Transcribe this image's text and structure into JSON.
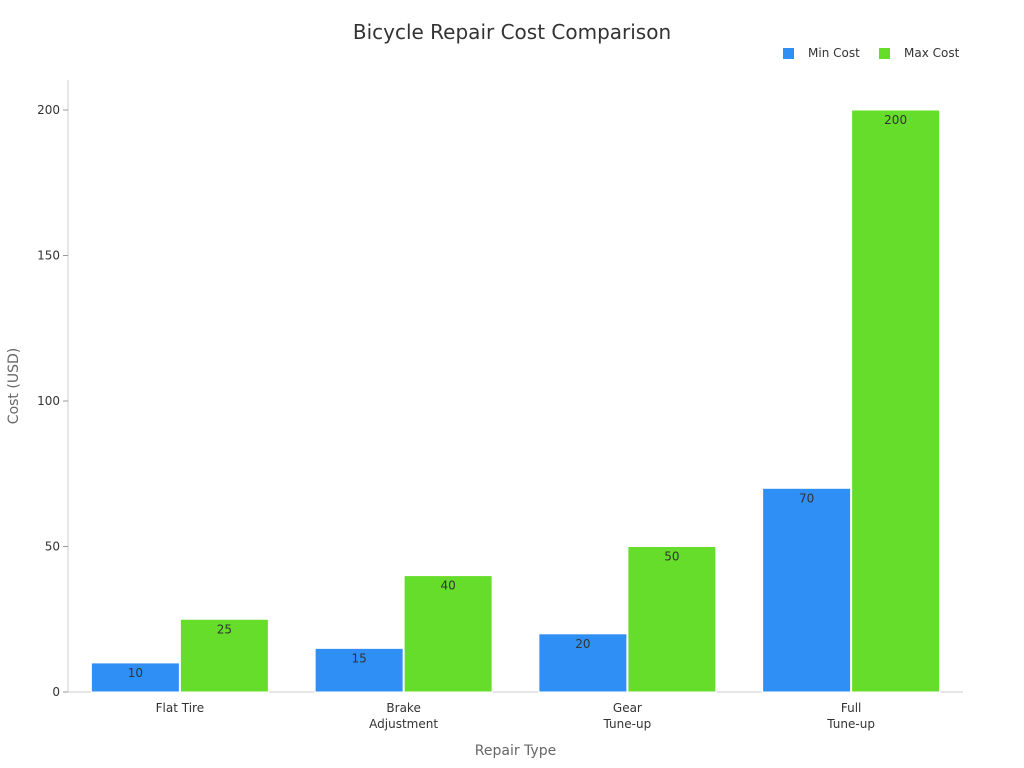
{
  "chart_data": {
    "type": "bar",
    "title": "Bicycle Repair Cost Comparison",
    "xlabel": "Repair Type",
    "ylabel": "Cost (USD)",
    "categories": [
      "Flat Tire",
      "Brake\nAdjustment",
      "Gear\nTune-up",
      "Full\nTune-up"
    ],
    "series": [
      {
        "name": "Min Cost",
        "color": "#2f8ff5",
        "values": [
          10,
          15,
          20,
          70
        ]
      },
      {
        "name": "Max Cost",
        "color": "#66dd2a",
        "values": [
          25,
          40,
          50,
          200
        ]
      }
    ],
    "ylim": [
      0,
      210
    ],
    "yticks": [
      0,
      50,
      100,
      150,
      200
    ],
    "grid": false,
    "legend": "top-right",
    "data_labels": true
  }
}
